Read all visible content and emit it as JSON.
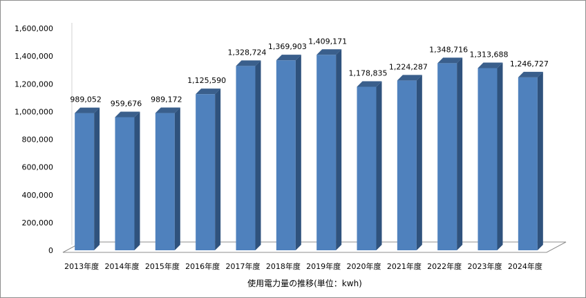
{
  "chart_data": {
    "type": "bar",
    "style": "3d-column",
    "title": "",
    "xlabel": "使用電力量の推移(単位：kwh)",
    "ylabel": "",
    "ylim": [
      0,
      1600000
    ],
    "y_ticks": [
      "0",
      "200,000",
      "400,000",
      "600,000",
      "800,000",
      "1,000,000",
      "1,200,000",
      "1,400,000",
      "1,600,000"
    ],
    "categories": [
      "2013年度",
      "2014年度",
      "2015年度",
      "2016年度",
      "2017年度",
      "2018年度",
      "2019年度",
      "2020年度",
      "2021年度",
      "2022年度",
      "2023年度",
      "2024年度"
    ],
    "values": [
      989052,
      959676,
      989172,
      1125590,
      1328724,
      1369903,
      1409171,
      1178835,
      1224287,
      1348716,
      1313688,
      1246727
    ],
    "value_labels": [
      "989,052",
      "959,676",
      "989,172",
      "1,125,590",
      "1,328,724",
      "1,369,903",
      "1,409,171",
      "1,178,835",
      "1,224,287",
      "1,348,716",
      "1,313,688",
      "1,246,727"
    ],
    "grid": false,
    "legend": "none",
    "colors": {
      "front": "#4f81bd",
      "side": "#2f527d",
      "top": "#3a5f8c",
      "floor_line": "#8c8c8c",
      "axis_line": "#d0d0d0"
    }
  }
}
